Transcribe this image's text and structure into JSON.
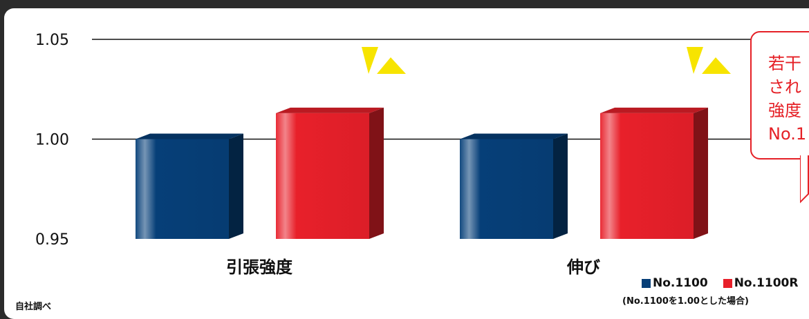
{
  "chart_data": {
    "type": "bar",
    "categories": [
      "引張強度",
      "伸び"
    ],
    "series": [
      {
        "name": "No.1100",
        "values": [
          1.0,
          1.0
        ],
        "color": "#063f78"
      },
      {
        "name": "No.1100R",
        "values": [
          1.013,
          1.013
        ],
        "color": "#e8202a"
      }
    ],
    "ylim": [
      0.95,
      1.05
    ],
    "yticks": [
      "0.95",
      "1.00",
      "1.05"
    ],
    "title": "",
    "xlabel": "",
    "ylabel": "",
    "grid": true,
    "legend_position": "bottom-right",
    "legend_note": "(No.1100を1.00とした場合)",
    "source_note": "自社調べ",
    "highlight_color": "#f7e400"
  },
  "callout": {
    "lines": [
      "若干",
      "され",
      "強度",
      "No.1"
    ],
    "color": "#e52026"
  }
}
